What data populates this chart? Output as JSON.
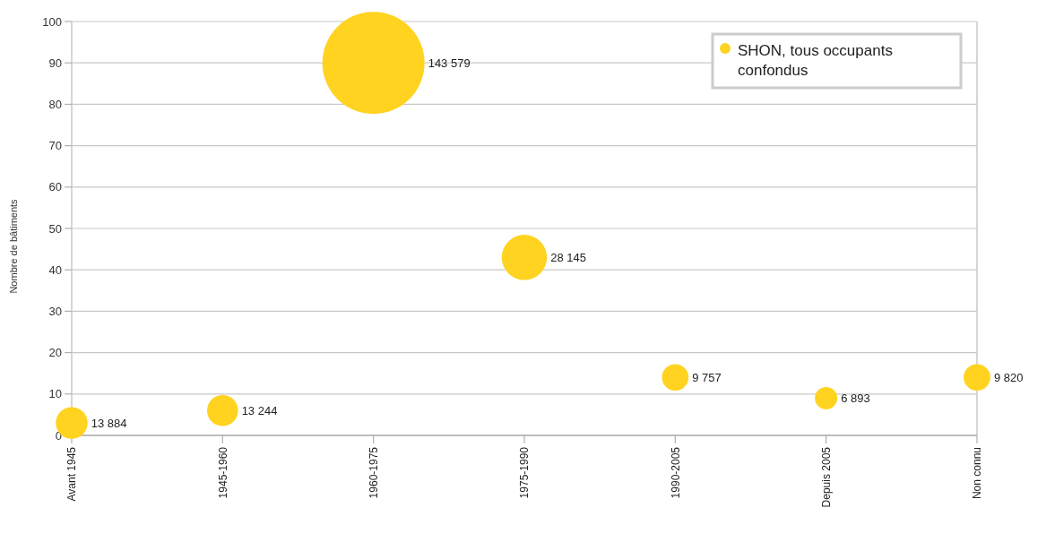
{
  "chart_data": {
    "type": "bubble",
    "ylabel": "Nombre de bâtiments",
    "categories": [
      "Avant 1945",
      "1945-1960",
      "1960-1975",
      "1975-1990",
      "1990-2005",
      "Depuis 2005",
      "Non connu"
    ],
    "series": [
      {
        "name": "SHON, tous occupants confondus",
        "color": "#ffd320",
        "values": [
          3,
          6,
          90,
          43,
          14,
          9,
          14
        ],
        "sizes": [
          13884,
          13244,
          143579,
          28145,
          9757,
          6893,
          9820
        ],
        "value_labels": [
          "13 884",
          "13 244",
          "143 579",
          "28 145",
          "9 757",
          "6 893",
          "9 820"
        ]
      }
    ],
    "ylim": [
      0,
      100
    ],
    "yticks": [
      0,
      10,
      20,
      30,
      40,
      50,
      60,
      70,
      80,
      90,
      100
    ],
    "grid": "y",
    "legend": "top right"
  }
}
